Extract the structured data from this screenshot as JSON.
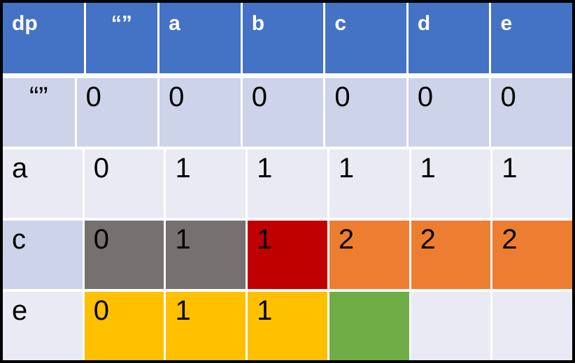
{
  "colors": {
    "frame_border": "#000000",
    "grid_lines": "#FFFFFF",
    "header_bg": "#4472C4",
    "header_text": "#FFFFFF",
    "band_dark": "#CDD3E8",
    "band_light": "#E9EAF3",
    "body_text": "#000000",
    "gray_highlight": "#767171",
    "red_highlight": "#C00000",
    "orange_highlight": "#ED7D31",
    "yellow_highlight": "#FFC000",
    "green_highlight": "#70AD47"
  },
  "table": {
    "header": [
      "dp",
      "“”",
      "a",
      "b",
      "c",
      "d",
      "e"
    ],
    "rows": [
      {
        "cells": [
          "“”",
          "0",
          "0",
          "0",
          "0",
          "0",
          "0"
        ]
      },
      {
        "cells": [
          "a",
          "0",
          "1",
          "1",
          "1",
          "1",
          "1"
        ]
      },
      {
        "cells": [
          "c",
          "0",
          "1",
          "1",
          "2",
          "2",
          "2"
        ]
      },
      {
        "cells": [
          "e",
          "0",
          "1",
          "1",
          "",
          "",
          ""
        ]
      }
    ]
  },
  "chart_data": {
    "type": "table",
    "corner_label": "dp",
    "column_headers": [
      "“”",
      "a",
      "b",
      "c",
      "d",
      "e"
    ],
    "row_headers": [
      "“”",
      "a",
      "c",
      "e"
    ],
    "values": [
      [
        0,
        0,
        0,
        0,
        0,
        0
      ],
      [
        0,
        1,
        1,
        1,
        1,
        1
      ],
      [
        0,
        1,
        1,
        2,
        2,
        2
      ],
      [
        0,
        1,
        1,
        null,
        null,
        null
      ]
    ],
    "cell_highlights": [
      {
        "row": "c",
        "col": "“”",
        "color": "#767171"
      },
      {
        "row": "c",
        "col": "a",
        "color": "#767171"
      },
      {
        "row": "c",
        "col": "b",
        "color": "#C00000"
      },
      {
        "row": "c",
        "col": "c",
        "color": "#ED7D31"
      },
      {
        "row": "c",
        "col": "d",
        "color": "#ED7D31"
      },
      {
        "row": "c",
        "col": "e",
        "color": "#ED7D31"
      },
      {
        "row": "e",
        "col": "“”",
        "color": "#FFC000"
      },
      {
        "row": "e",
        "col": "a",
        "color": "#FFC000"
      },
      {
        "row": "e",
        "col": "b",
        "color": "#FFC000"
      },
      {
        "row": "e",
        "col": "c",
        "color": "#70AD47"
      }
    ],
    "layout": {
      "banded_rows": true,
      "grid": true
    }
  }
}
